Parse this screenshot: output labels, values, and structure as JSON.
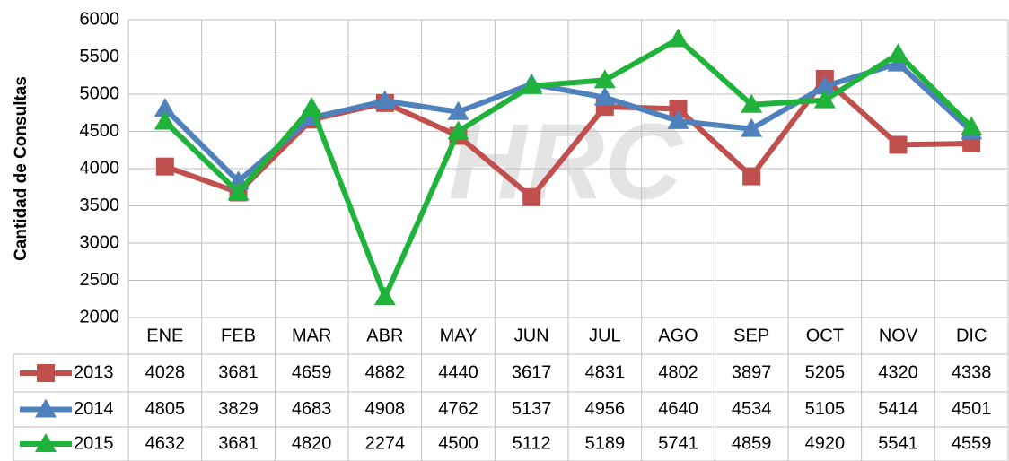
{
  "chart_data": {
    "type": "line",
    "y_label": "Cantidad de Consultas",
    "watermark": "HRC",
    "categories": [
      "ENE",
      "FEB",
      "MAR",
      "ABR",
      "MAY",
      "JUN",
      "JUL",
      "AGO",
      "SEP",
      "OCT",
      "NOV",
      "DIC"
    ],
    "series": [
      {
        "name": "2013",
        "color": "#c0504d",
        "marker": "square",
        "values": [
          4028,
          3681,
          4659,
          4882,
          4440,
          3617,
          4831,
          4802,
          3897,
          5205,
          4320,
          4338
        ]
      },
      {
        "name": "2014",
        "color": "#4f81bd",
        "marker": "triangle",
        "values": [
          4805,
          3829,
          4683,
          4908,
          4762,
          5137,
          4956,
          4640,
          4534,
          5105,
          5414,
          4501
        ]
      },
      {
        "name": "2015",
        "color": "#1fb33b",
        "marker": "triangle",
        "values": [
          4632,
          3681,
          4820,
          2274,
          4500,
          5112,
          5189,
          5741,
          4859,
          4920,
          5541,
          4559
        ]
      }
    ],
    "ylim": [
      2000,
      6000
    ],
    "yticks": [
      2000,
      2500,
      3000,
      3500,
      4000,
      4500,
      5000,
      5500,
      6000
    ],
    "grid": true
  }
}
